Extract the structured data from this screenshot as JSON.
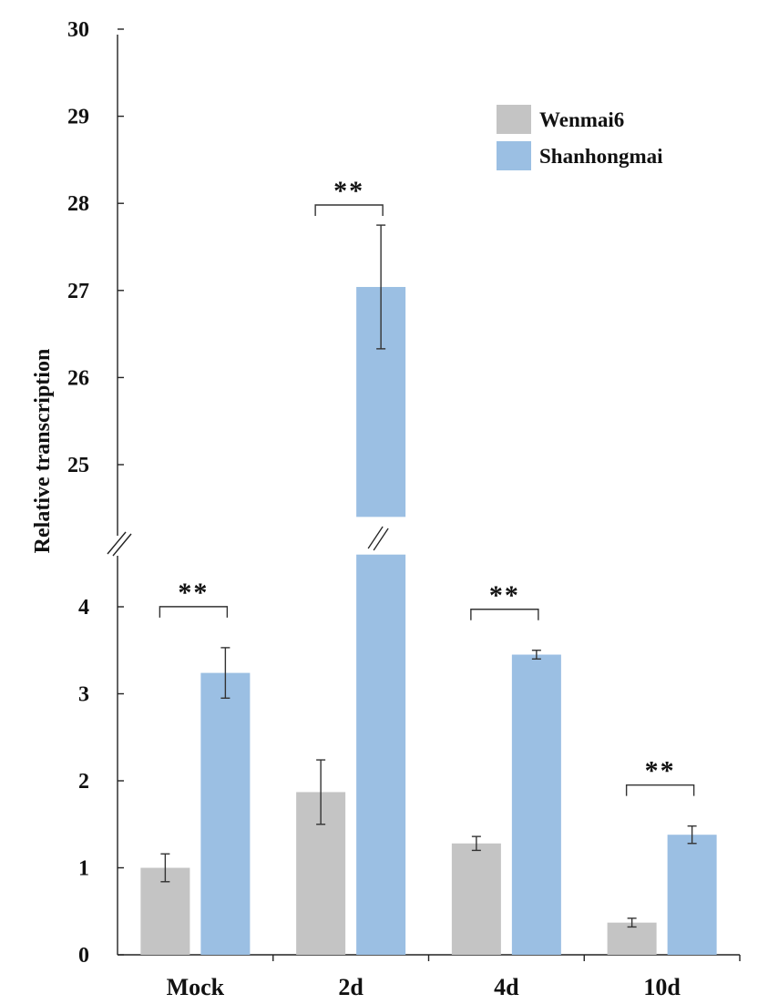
{
  "chart_data": {
    "type": "bar",
    "ylabel": "Relative transcription",
    "categories": [
      "Mock",
      "2d",
      "4d",
      "10d"
    ],
    "series": [
      {
        "name": "Wenmai6",
        "color": "#c4c4c4",
        "values": [
          1.0,
          1.87,
          1.28,
          0.37
        ],
        "errors": [
          0.16,
          0.37,
          0.08,
          0.05
        ]
      },
      {
        "name": "Shanhongmai",
        "color": "#9bbfe3",
        "values": [
          3.24,
          27.04,
          3.45,
          1.38
        ],
        "errors": [
          0.29,
          0.71,
          0.05,
          0.1
        ]
      }
    ],
    "axis_break": {
      "lower_range": [
        0,
        4.6
      ],
      "upper_range": [
        24.4,
        30
      ]
    },
    "yticks_lower": [
      "0",
      "1",
      "2",
      "3",
      "4"
    ],
    "yticks_upper": [
      "25",
      "26",
      "27",
      "28",
      "29",
      "30"
    ],
    "significance": [
      {
        "category": "Mock",
        "label": "**"
      },
      {
        "category": "2d",
        "label": "**"
      },
      {
        "category": "4d",
        "label": "**"
      },
      {
        "category": "10d",
        "label": "**"
      }
    ],
    "legend_position": "top-right"
  }
}
